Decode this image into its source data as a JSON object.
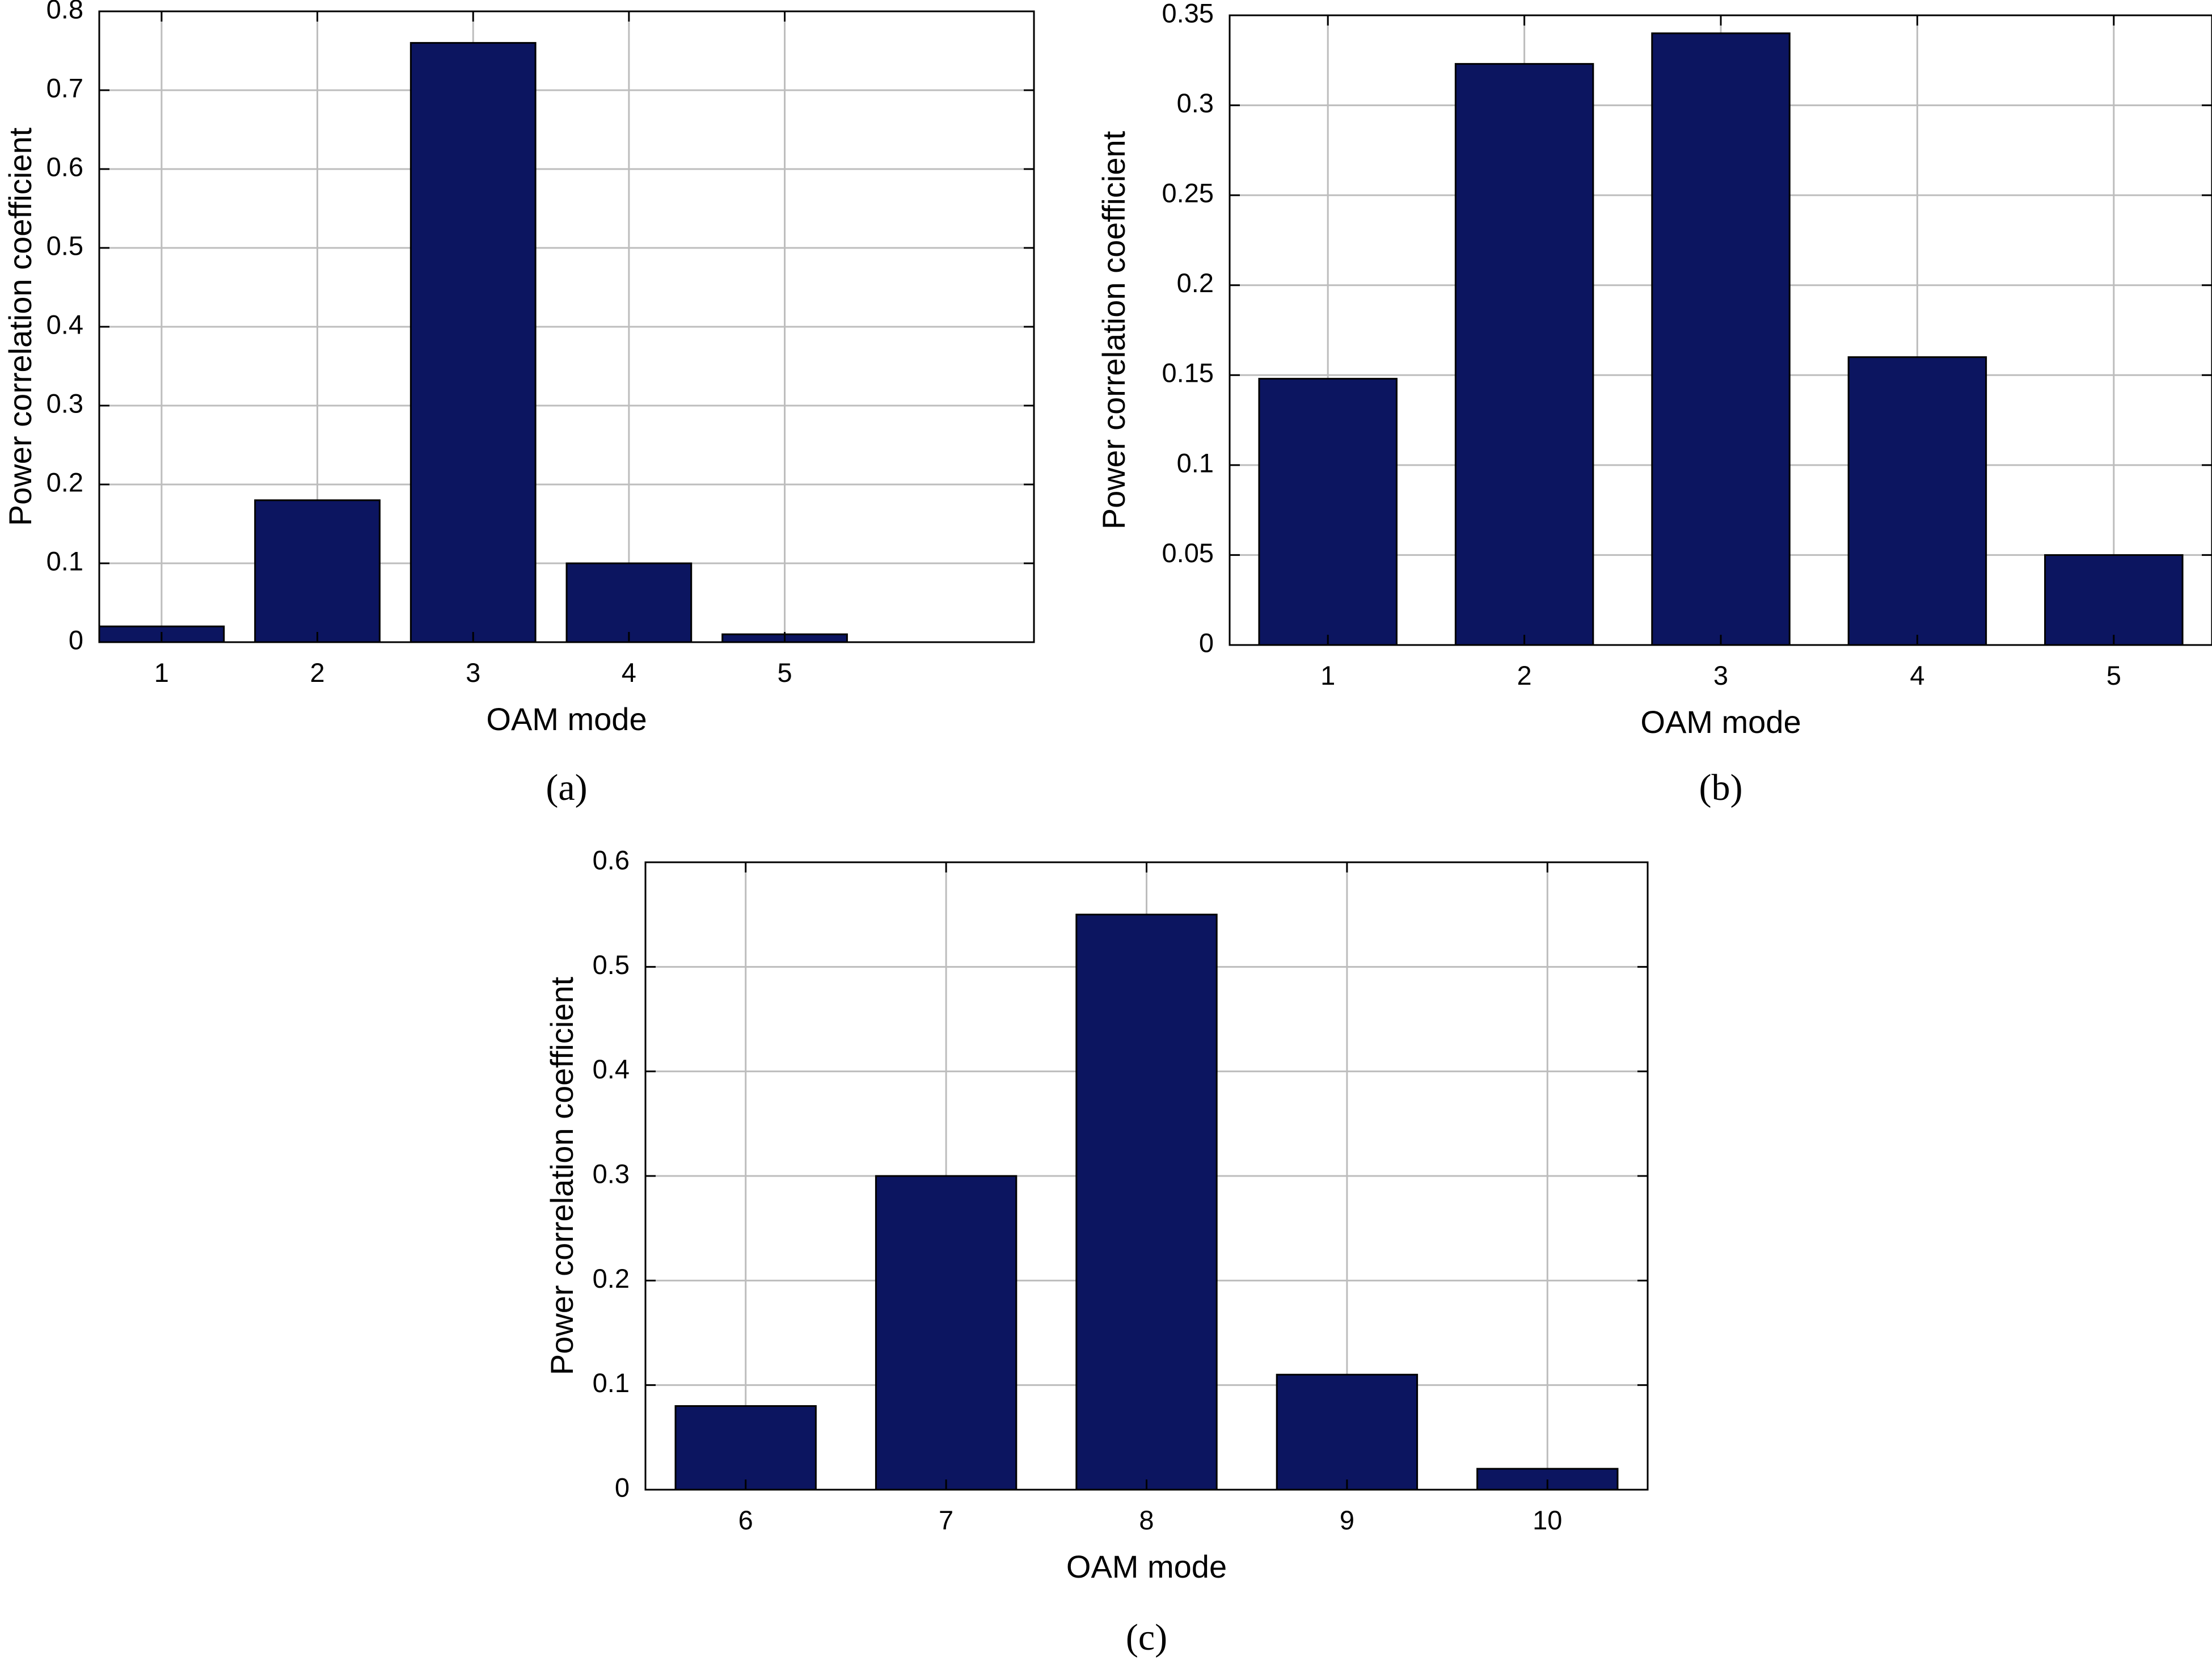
{
  "colors": {
    "bar_fill": "#0c1560",
    "bar_stroke": "#000000",
    "grid": "#bdbdbd",
    "axis": "#000000",
    "background": "#ffffff"
  },
  "chart_data": [
    {
      "type": "bar",
      "caption": "(a)",
      "categories": [
        "1",
        "2",
        "3",
        "4",
        "5"
      ],
      "values": [
        0.02,
        0.18,
        0.76,
        0.1,
        0.01
      ],
      "xlabel": "OAM mode",
      "ylabel": "Power correlation coefficient",
      "ylim": [
        0,
        0.8
      ],
      "yticks": [
        0,
        0.1,
        0.2,
        0.3,
        0.4,
        0.5,
        0.6,
        0.7,
        0.8
      ],
      "ytick_labels": [
        "0",
        "0.1",
        "0.2",
        "0.3",
        "0.4",
        "0.5",
        "0.6",
        "0.7",
        "0.8"
      ],
      "xlim": [
        0.6,
        6.6
      ],
      "bar_width": 0.8,
      "grid": true
    },
    {
      "type": "bar",
      "caption": "(b)",
      "categories": [
        "1",
        "2",
        "3",
        "4",
        "5"
      ],
      "values": [
        0.148,
        0.323,
        0.34,
        0.16,
        0.05
      ],
      "xlabel": "OAM mode",
      "ylabel": "Power correlation coefficient",
      "ylim": [
        0,
        0.35
      ],
      "yticks": [
        0,
        0.05,
        0.1,
        0.15,
        0.2,
        0.25,
        0.3,
        0.35
      ],
      "ytick_labels": [
        "0",
        "0.05",
        "0.1",
        "0.15",
        "0.2",
        "0.25",
        "0.3",
        "0.35"
      ],
      "xlim": [
        0.5,
        5.5
      ],
      "bar_width": 0.7,
      "grid": true
    },
    {
      "type": "bar",
      "caption": "(c)",
      "categories": [
        "6",
        "7",
        "8",
        "9",
        "10"
      ],
      "values": [
        0.08,
        0.3,
        0.55,
        0.11,
        0.02
      ],
      "xlabel": "OAM mode",
      "ylabel": "Power correlation coefficient",
      "ylim": [
        0,
        0.6
      ],
      "yticks": [
        0,
        0.1,
        0.2,
        0.3,
        0.4,
        0.5,
        0.6
      ],
      "ytick_labels": [
        "0",
        "0.1",
        "0.2",
        "0.3",
        "0.4",
        "0.5",
        "0.6"
      ],
      "xlim": [
        5.5,
        10.5
      ],
      "bar_width": 0.7,
      "grid": true
    }
  ]
}
